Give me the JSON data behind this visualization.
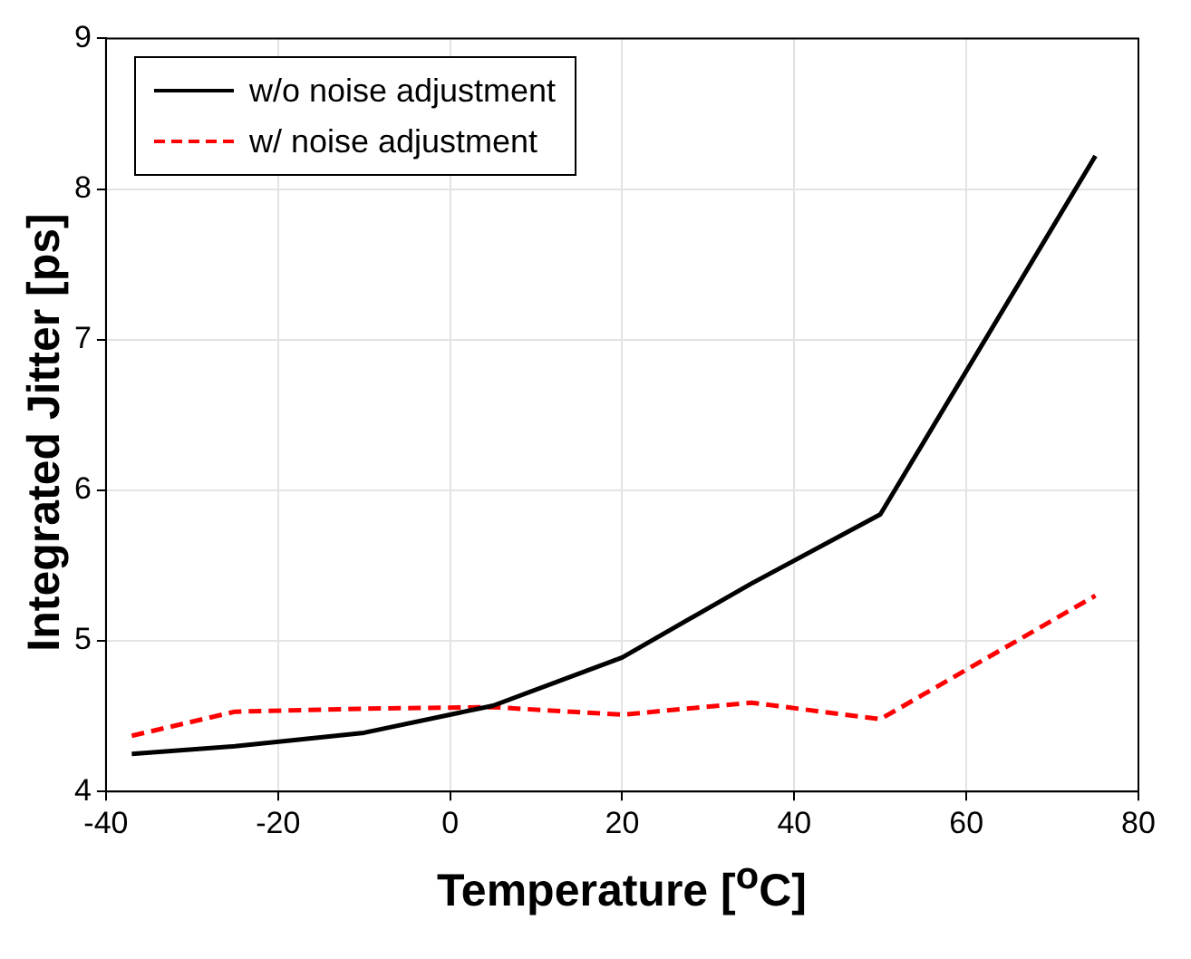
{
  "chart_data": {
    "type": "line",
    "xlabel": "Temperature [$^{o}$C]",
    "ylabel": "Integrated Jitter [ps]",
    "x": [
      -37,
      -25,
      -10,
      5,
      20,
      35,
      50,
      75
    ],
    "series": [
      {
        "name": "w/o noise adjustment",
        "color": "#000000",
        "line_style": "solid",
        "values": [
          4.25,
          4.3,
          4.39,
          4.57,
          4.89,
          5.38,
          5.84,
          8.22
        ]
      },
      {
        "name": "w/ noise adjustment",
        "color": "#ff0000",
        "line_style": "dashed",
        "values": [
          4.37,
          4.53,
          4.55,
          4.56,
          4.51,
          4.59,
          4.48,
          5.3
        ]
      }
    ],
    "xlim": [
      -40,
      80
    ],
    "xticks": [
      -40,
      -20,
      0,
      20,
      40,
      60,
      80
    ],
    "ylim": [
      4,
      9
    ],
    "yticks": [
      4,
      5,
      6,
      7,
      8,
      9
    ],
    "grid": true,
    "legend": "top left",
    "marker": "none"
  }
}
